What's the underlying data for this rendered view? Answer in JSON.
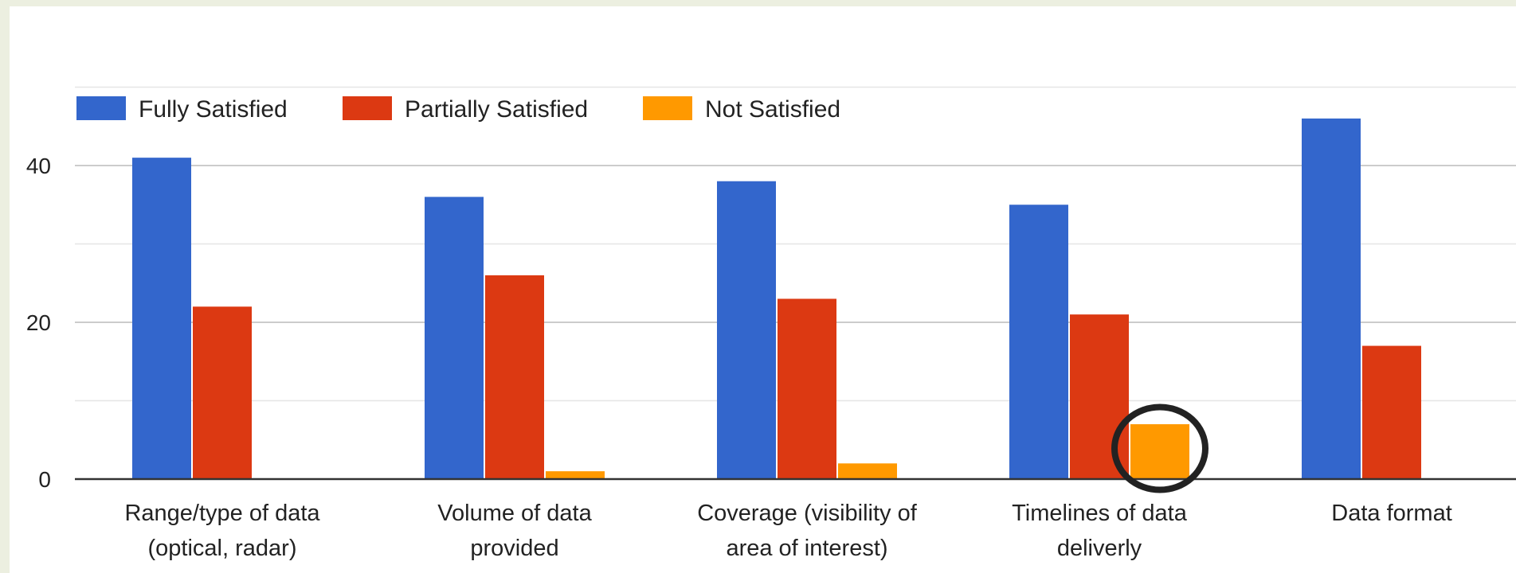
{
  "colors": {
    "fully": "#3366cc",
    "partially": "#dc3912",
    "not": "#ff9900",
    "highlight": "#222222"
  },
  "chart_data": {
    "type": "bar",
    "title": "",
    "xlabel": "",
    "ylabel": "",
    "ylim": [
      0,
      50
    ],
    "yticks": [
      0,
      20,
      40
    ],
    "grid": true,
    "legend_position": "top-left",
    "categories": [
      [
        "Range/type of data",
        "(optical, radar)"
      ],
      [
        "Volume of data",
        "provided"
      ],
      [
        "Coverage (visibility of",
        "area of interest)"
      ],
      [
        "Timelines of data",
        "deliverly"
      ],
      [
        "Data format"
      ]
    ],
    "series": [
      {
        "name": "Fully Satisfied",
        "color": "#3366cc",
        "values": [
          41,
          36,
          38,
          35,
          46
        ]
      },
      {
        "name": "Partially Satisfied",
        "color": "#dc3912",
        "values": [
          22,
          26,
          23,
          21,
          17
        ]
      },
      {
        "name": "Not Satisfied",
        "color": "#ff9900",
        "values": [
          0,
          1,
          2,
          7,
          0
        ]
      }
    ],
    "annotation": {
      "type": "circle-highlight",
      "series": 2,
      "category": 3
    }
  }
}
